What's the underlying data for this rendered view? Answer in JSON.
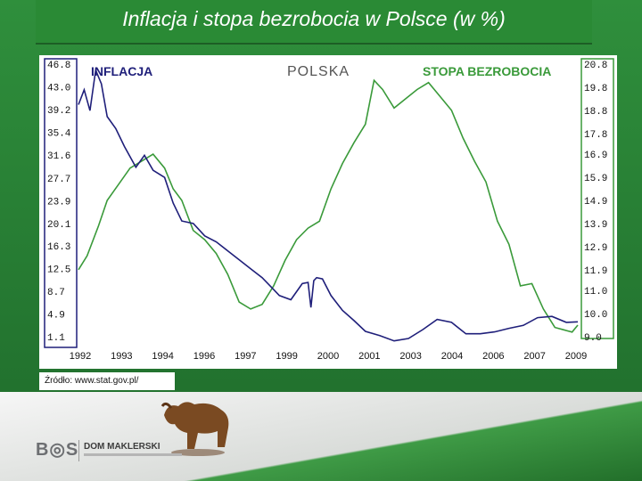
{
  "title": "Inflacja i stopa bezrobocia w Polsce (w %)",
  "source": "Źródło: www.stat.gov.pl/",
  "brand": {
    "logo": "B◎S",
    "name": "DOM MAKLERSKI"
  },
  "colors": {
    "inflation": "#1f1f7a",
    "unemployment": "#3a9a3a",
    "left_axis": "#1f1f7a",
    "right_axis": "#3a9a3a",
    "background": "#2f8f3c"
  },
  "chart_data": {
    "type": "line",
    "title": "POLSKA",
    "grid": false,
    "series": [
      {
        "name": "INFLACJA",
        "axis": "left",
        "x": [
          1992.0,
          1992.2,
          1992.4,
          1992.6,
          1992.8,
          1993.0,
          1993.3,
          1993.6,
          1994.0,
          1994.3,
          1994.6,
          1995.0,
          1995.3,
          1995.6,
          1996.0,
          1996.4,
          1996.8,
          1997.2,
          1997.6,
          1998.0,
          1998.4,
          1998.8,
          1999.0,
          1999.4,
          1999.8,
          2000.0,
          2000.1,
          2000.2,
          2000.3,
          2000.5,
          2000.8,
          2001.2,
          2001.6,
          2002.0,
          2002.5,
          2003.0,
          2003.5,
          2004.0,
          2004.5,
          2005.0,
          2005.5,
          2006.0,
          2006.5,
          2007.0,
          2007.5,
          2008.0,
          2008.5,
          2009.0,
          2009.4
        ],
        "values": [
          40.0,
          42.5,
          39.0,
          45.8,
          43.5,
          38.0,
          36.0,
          33.0,
          29.5,
          31.5,
          29.0,
          27.8,
          23.5,
          20.5,
          20.1,
          18.0,
          17.0,
          15.5,
          14.0,
          12.5,
          11.0,
          9.0,
          8.0,
          7.3,
          10.0,
          10.2,
          6.0,
          10.5,
          11.0,
          10.8,
          8.0,
          5.5,
          3.8,
          2.0,
          1.3,
          0.4,
          0.8,
          2.3,
          4.0,
          3.5,
          1.6,
          1.6,
          1.9,
          2.5,
          3.0,
          4.3,
          4.5,
          3.5,
          3.6
        ]
      },
      {
        "name": "STOPA BEZROBOCIA",
        "axis": "right",
        "x": [
          1992.0,
          1992.3,
          1992.7,
          1993.0,
          1993.4,
          1993.8,
          1994.2,
          1994.6,
          1995.0,
          1995.3,
          1995.6,
          1996.0,
          1996.4,
          1996.8,
          1997.2,
          1997.6,
          1998.0,
          1998.4,
          1998.8,
          1999.2,
          1999.6,
          2000.0,
          2000.4,
          2000.8,
          2001.2,
          2001.6,
          2002.0,
          2002.3,
          2002.6,
          2003.0,
          2003.4,
          2003.8,
          2004.2,
          2004.6,
          2005.0,
          2005.4,
          2005.8,
          2006.2,
          2006.6,
          2007.0,
          2007.4,
          2007.8,
          2008.2,
          2008.6,
          2008.9,
          2009.2,
          2009.4
        ],
        "values": [
          11.9,
          12.5,
          13.8,
          14.9,
          15.6,
          16.3,
          16.6,
          16.9,
          16.3,
          15.4,
          14.9,
          13.6,
          13.2,
          12.6,
          11.7,
          10.5,
          10.2,
          10.4,
          11.2,
          12.3,
          13.2,
          13.7,
          14.0,
          15.4,
          16.5,
          17.4,
          18.2,
          20.1,
          19.7,
          18.9,
          19.3,
          19.7,
          20.0,
          19.4,
          18.8,
          17.6,
          16.6,
          15.7,
          14.0,
          13.0,
          11.2,
          11.3,
          10.2,
          9.4,
          9.3,
          9.2,
          9.5
        ]
      }
    ],
    "xlabels": [
      "1992",
      "1993",
      "1994",
      "1996",
      "1997",
      "1999",
      "2000",
      "2001",
      "2003",
      "2004",
      "2006",
      "2007",
      "2009"
    ],
    "left_ticks": [
      "46.8",
      "43.0",
      "39.2",
      "35.4",
      "31.6",
      "27.7",
      "23.9",
      "20.1",
      "16.3",
      "12.5",
      "8.7",
      "4.9",
      "1.1"
    ],
    "right_ticks": [
      "20.8",
      "19.8",
      "18.8",
      "17.8",
      "16.9",
      "15.9",
      "14.9",
      "13.9",
      "12.9",
      "11.9",
      "11.0",
      "10.0",
      "9.0"
    ],
    "xlim": [
      1992.0,
      2009.4
    ],
    "ylim_left": [
      1.1,
      46.8
    ],
    "ylim_right": [
      9.0,
      20.8
    ]
  }
}
